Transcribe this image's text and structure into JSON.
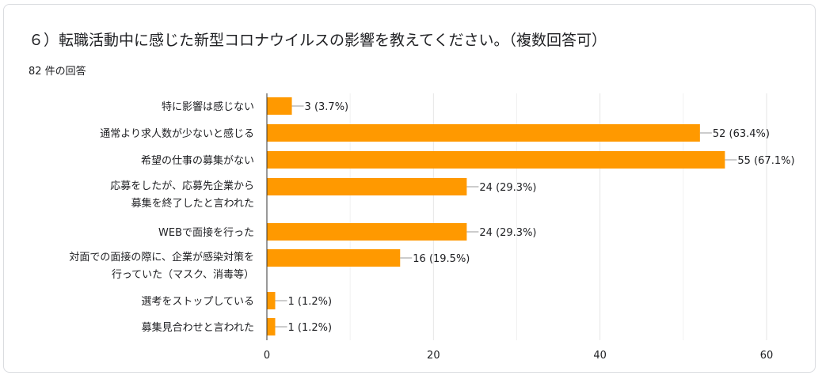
{
  "header": {
    "title": "６）転職活動中に感じた新型コロナウイルスの影響を教えてください。（複数回答可）",
    "response_count": "82 件の回答"
  },
  "colors": {
    "bar": "#ff9900",
    "grid": "#e6e6e6",
    "axis": "#333333",
    "text": "#202124"
  },
  "chart_data": {
    "type": "bar",
    "orientation": "horizontal",
    "categories": [
      [
        "特に影響は感じない"
      ],
      [
        "通常より求人数が少ないと感じる"
      ],
      [
        "希望の仕事の募集がない"
      ],
      [
        "応募をしたが、応募先企業から",
        "募集を終了したと言われた"
      ],
      [
        "WEBで面接を行った"
      ],
      [
        "対面での面接の際に、企業が感染対策を",
        "行っていた（マスク、消毒等）"
      ],
      [
        "選考をストップしている"
      ],
      [
        "募集見合わせと言われた"
      ]
    ],
    "values": [
      3,
      52,
      55,
      24,
      24,
      16,
      1,
      1
    ],
    "data_labels": [
      "3 (3.7%)",
      "52 (63.4%)",
      "55 (67.1%)",
      "24 (29.3%)",
      "24 (29.3%)",
      "16 (19.5%)",
      "1 (1.2%)",
      "1 (1.2%)"
    ],
    "xlim": [
      0,
      60
    ],
    "xticks": [
      0,
      20,
      40,
      60
    ],
    "grid": true
  }
}
